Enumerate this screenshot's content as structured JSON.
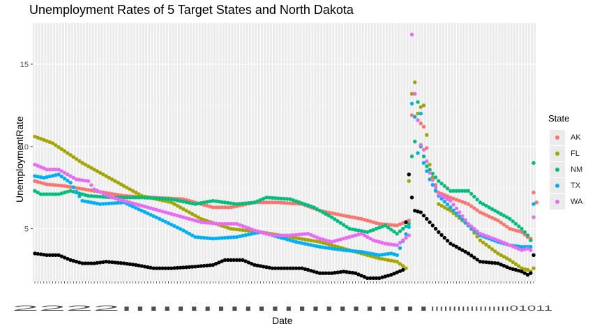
{
  "chart_data": {
    "type": "scatter",
    "title": "Unemployment Rates of 5 Target States and North Dakota",
    "xlabel": "Date",
    "ylabel": "UnemploymentRate",
    "ylim": [
      1.8,
      17.5
    ],
    "y_ticks": [
      5,
      10,
      15
    ],
    "x_tick_text_left": "2222ııııııııııııııııııııııı",
    "x_tick_text_right": "ıııııııııııııııııı01011",
    "legend_title": "State",
    "legend_position": "right",
    "grid": true,
    "series": [
      {
        "name": "AK",
        "color": "#F8766D",
        "in_legend": true,
        "anchors": [
          [
            0,
            7.9
          ],
          [
            4,
            7.7
          ],
          [
            10,
            7.6
          ],
          [
            20,
            7.3
          ],
          [
            30,
            7.0
          ],
          [
            40,
            6.9
          ],
          [
            50,
            6.8
          ],
          [
            54,
            6.6
          ],
          [
            60,
            6.3
          ],
          [
            66,
            6.3
          ],
          [
            74,
            6.6
          ],
          [
            82,
            6.6
          ],
          [
            90,
            6.5
          ],
          [
            96,
            6.1
          ],
          [
            104,
            5.8
          ],
          [
            110,
            5.6
          ],
          [
            116,
            5.3
          ],
          [
            122,
            5.2
          ],
          [
            126,
            5.5
          ],
          [
            127,
            11.9
          ],
          [
            128,
            11.8
          ],
          [
            129,
            11.6
          ],
          [
            130,
            11.4
          ],
          [
            131,
            11.2
          ],
          [
            133,
            8.6
          ],
          [
            136,
            7.2
          ],
          [
            140,
            6.9
          ],
          [
            146,
            6.5
          ],
          [
            150,
            6.0
          ],
          [
            156,
            5.5
          ],
          [
            160,
            5.0
          ],
          [
            164,
            4.8
          ],
          [
            166,
            4.5
          ],
          [
            167,
            4.4
          ],
          [
            168,
            7.2
          ],
          [
            169,
            6.6
          ]
        ]
      },
      {
        "name": "FL",
        "color": "#A3A500",
        "in_legend": true,
        "anchors": [
          [
            0,
            10.6
          ],
          [
            6,
            10.2
          ],
          [
            16,
            9.0
          ],
          [
            26,
            8.0
          ],
          [
            36,
            7.0
          ],
          [
            46,
            6.6
          ],
          [
            56,
            5.6
          ],
          [
            66,
            5.0
          ],
          [
            76,
            4.8
          ],
          [
            86,
            4.5
          ],
          [
            96,
            4.2
          ],
          [
            106,
            3.7
          ],
          [
            116,
            3.2
          ],
          [
            122,
            3.0
          ],
          [
            125,
            2.6
          ],
          [
            127,
            13.2
          ],
          [
            128,
            13.9
          ],
          [
            129,
            12.0
          ],
          [
            130,
            12.4
          ],
          [
            131,
            12.5
          ],
          [
            133,
            8.9
          ],
          [
            136,
            6.5
          ],
          [
            140,
            6.1
          ],
          [
            146,
            5.2
          ],
          [
            150,
            4.3
          ],
          [
            156,
            3.5
          ],
          [
            160,
            3.1
          ],
          [
            164,
            2.6
          ],
          [
            166,
            2.5
          ],
          [
            167,
            2.4
          ],
          [
            168,
            2.6
          ]
        ]
      },
      {
        "name": "NM",
        "color": "#00BF7D",
        "in_legend": true,
        "anchors": [
          [
            0,
            7.3
          ],
          [
            2,
            7.1
          ],
          [
            8,
            7.1
          ],
          [
            12,
            7.3
          ],
          [
            18,
            7.0
          ],
          [
            26,
            6.9
          ],
          [
            36,
            6.9
          ],
          [
            46,
            6.8
          ],
          [
            54,
            6.5
          ],
          [
            60,
            6.7
          ],
          [
            68,
            6.5
          ],
          [
            74,
            6.6
          ],
          [
            78,
            6.9
          ],
          [
            86,
            6.8
          ],
          [
            94,
            6.3
          ],
          [
            100,
            5.7
          ],
          [
            106,
            5.0
          ],
          [
            112,
            4.8
          ],
          [
            118,
            5.2
          ],
          [
            122,
            4.7
          ],
          [
            126,
            5.3
          ],
          [
            127,
            9.4
          ],
          [
            128,
            10.3
          ],
          [
            129,
            12.7
          ],
          [
            130,
            10.0
          ],
          [
            132,
            8.8
          ],
          [
            136,
            7.9
          ],
          [
            140,
            7.3
          ],
          [
            146,
            7.3
          ],
          [
            150,
            6.6
          ],
          [
            156,
            6.0
          ],
          [
            160,
            5.6
          ],
          [
            164,
            5.0
          ],
          [
            166,
            4.6
          ],
          [
            167,
            4.3
          ],
          [
            168,
            9.0
          ]
        ]
      },
      {
        "name": "TX",
        "color": "#00B0F6",
        "in_legend": true,
        "anchors": [
          [
            0,
            8.2
          ],
          [
            3,
            8.1
          ],
          [
            8,
            8.3
          ],
          [
            12,
            7.8
          ],
          [
            16,
            6.7
          ],
          [
            22,
            6.5
          ],
          [
            30,
            6.6
          ],
          [
            36,
            6.1
          ],
          [
            42,
            5.6
          ],
          [
            50,
            4.9
          ],
          [
            54,
            4.5
          ],
          [
            60,
            4.4
          ],
          [
            68,
            4.5
          ],
          [
            76,
            4.8
          ],
          [
            82,
            4.5
          ],
          [
            88,
            4.2
          ],
          [
            96,
            3.9
          ],
          [
            104,
            3.7
          ],
          [
            110,
            3.6
          ],
          [
            116,
            3.4
          ],
          [
            120,
            3.5
          ],
          [
            122,
            3.4
          ],
          [
            126,
            5.1
          ],
          [
            127,
            12.6
          ],
          [
            128,
            11.8
          ],
          [
            129,
            9.6
          ],
          [
            130,
            12.0
          ],
          [
            131,
            9.0
          ],
          [
            133,
            8.0
          ],
          [
            136,
            7.0
          ],
          [
            140,
            6.3
          ],
          [
            146,
            5.2
          ],
          [
            150,
            4.6
          ],
          [
            156,
            4.2
          ],
          [
            160,
            4.0
          ],
          [
            164,
            3.9
          ],
          [
            166,
            3.9
          ],
          [
            167,
            3.9
          ],
          [
            168,
            6.5
          ]
        ]
      },
      {
        "name": "WA",
        "color": "#E76BF3",
        "in_legend": true,
        "anchors": [
          [
            0,
            8.9
          ],
          [
            4,
            8.6
          ],
          [
            8,
            8.6
          ],
          [
            14,
            8.0
          ],
          [
            18,
            7.9
          ],
          [
            20,
            7.4
          ],
          [
            26,
            6.9
          ],
          [
            34,
            6.5
          ],
          [
            40,
            6.2
          ],
          [
            46,
            5.9
          ],
          [
            52,
            5.6
          ],
          [
            56,
            5.4
          ],
          [
            62,
            5.3
          ],
          [
            68,
            5.3
          ],
          [
            74,
            4.9
          ],
          [
            80,
            4.6
          ],
          [
            86,
            4.6
          ],
          [
            92,
            4.7
          ],
          [
            96,
            4.4
          ],
          [
            100,
            4.2
          ],
          [
            106,
            4.5
          ],
          [
            110,
            4.7
          ],
          [
            114,
            4.3
          ],
          [
            118,
            4.1
          ],
          [
            122,
            4.0
          ],
          [
            126,
            4.6
          ],
          [
            127,
            16.8
          ],
          [
            128,
            13.2
          ],
          [
            129,
            11.6
          ],
          [
            130,
            10.1
          ],
          [
            131,
            9.8
          ],
          [
            133,
            8.4
          ],
          [
            136,
            7.1
          ],
          [
            140,
            6.7
          ],
          [
            146,
            5.3
          ],
          [
            150,
            4.7
          ],
          [
            156,
            4.3
          ],
          [
            160,
            4.0
          ],
          [
            164,
            3.7
          ],
          [
            166,
            3.8
          ],
          [
            167,
            3.7
          ],
          [
            168,
            5.7
          ]
        ]
      },
      {
        "name": "",
        "color": "#000000",
        "in_legend": false,
        "anchors": [
          [
            0,
            3.5
          ],
          [
            4,
            3.4
          ],
          [
            8,
            3.4
          ],
          [
            12,
            3.1
          ],
          [
            16,
            2.9
          ],
          [
            20,
            2.9
          ],
          [
            24,
            3.0
          ],
          [
            30,
            2.9
          ],
          [
            34,
            2.8
          ],
          [
            40,
            2.6
          ],
          [
            46,
            2.6
          ],
          [
            54,
            2.7
          ],
          [
            60,
            2.8
          ],
          [
            64,
            3.1
          ],
          [
            70,
            3.1
          ],
          [
            74,
            2.8
          ],
          [
            80,
            2.6
          ],
          [
            86,
            2.6
          ],
          [
            90,
            2.6
          ],
          [
            96,
            2.3
          ],
          [
            100,
            2.3
          ],
          [
            104,
            2.4
          ],
          [
            108,
            2.3
          ],
          [
            112,
            2.0
          ],
          [
            116,
            2.0
          ],
          [
            120,
            2.2
          ],
          [
            124,
            2.5
          ],
          [
            126,
            8.3
          ],
          [
            127,
            6.9
          ],
          [
            128,
            6.1
          ],
          [
            130,
            6.0
          ],
          [
            132,
            5.6
          ],
          [
            136,
            4.8
          ],
          [
            140,
            4.1
          ],
          [
            146,
            3.5
          ],
          [
            150,
            3.0
          ],
          [
            156,
            2.9
          ],
          [
            160,
            2.6
          ],
          [
            164,
            2.4
          ],
          [
            166,
            2.2
          ],
          [
            167,
            2.3
          ],
          [
            168,
            3.4
          ]
        ]
      }
    ]
  }
}
